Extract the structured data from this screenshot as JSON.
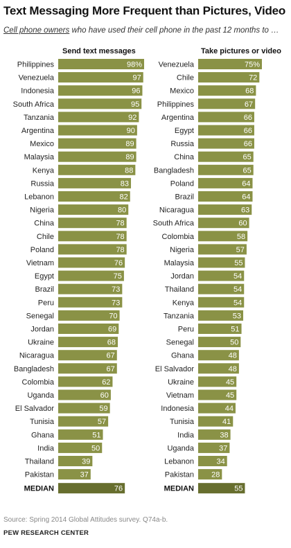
{
  "title": "Text Messaging More Frequent than Pictures, Video",
  "subtitle_underlined": "Cell phone owners",
  "subtitle_rest": " who have used their cell phone in the past 12 months to …",
  "source": "Source: Spring 2014 Global Attitudes survey. Q74a-b.",
  "org": "PEW RESEARCH CENTER",
  "colors": {
    "bar": "#8a9246",
    "median_bar": "#676e2e"
  },
  "chart_data": [
    {
      "type": "bar",
      "orientation": "horizontal",
      "title": "Send text messages",
      "categories": [
        "Philippines",
        "Venezuela",
        "Indonesia",
        "South Africa",
        "Tanzania",
        "Argentina",
        "Mexico",
        "Malaysia",
        "Kenya",
        "Russia",
        "Lebanon",
        "Nigeria",
        "China",
        "Chile",
        "Poland",
        "Vietnam",
        "Egypt",
        "Brazil",
        "Peru",
        "Senegal",
        "Jordan",
        "Ukraine",
        "Nicaragua",
        "Bangladesh",
        "Colombia",
        "Uganda",
        "El Salvador",
        "Tunisia",
        "Ghana",
        "India",
        "Thailand",
        "Pakistan"
      ],
      "values": [
        98,
        97,
        96,
        95,
        92,
        90,
        89,
        89,
        88,
        83,
        82,
        80,
        78,
        78,
        78,
        76,
        75,
        73,
        73,
        70,
        69,
        68,
        67,
        67,
        62,
        60,
        59,
        57,
        51,
        50,
        39,
        37
      ],
      "value_labels": [
        "98%",
        "97",
        "96",
        "95",
        "92",
        "90",
        "89",
        "89",
        "88",
        "83",
        "82",
        "80",
        "78",
        "78",
        "78",
        "76",
        "75",
        "73",
        "73",
        "70",
        "69",
        "68",
        "67",
        "67",
        "62",
        "60",
        "59",
        "57",
        "51",
        "50",
        "39",
        "37"
      ],
      "median_label": "MEDIAN",
      "median": 76,
      "xlim": [
        0,
        100
      ]
    },
    {
      "type": "bar",
      "orientation": "horizontal",
      "title": "Take pictures or video",
      "categories": [
        "Venezuela",
        "Chile",
        "Mexico",
        "Philippines",
        "Argentina",
        "Egypt",
        "Russia",
        "China",
        "Bangladesh",
        "Poland",
        "Brazil",
        "Nicaragua",
        "South Africa",
        "Colombia",
        "Nigeria",
        "Malaysia",
        "Jordan",
        "Thailand",
        "Kenya",
        "Tanzania",
        "Peru",
        "Senegal",
        "Ghana",
        "El Salvador",
        "Ukraine",
        "Vietnam",
        "Indonesia",
        "Tunisia",
        "India",
        "Uganda",
        "Lebanon",
        "Pakistan"
      ],
      "values": [
        75,
        72,
        68,
        67,
        66,
        66,
        66,
        65,
        65,
        64,
        64,
        63,
        60,
        58,
        57,
        55,
        54,
        54,
        54,
        53,
        51,
        50,
        48,
        48,
        45,
        45,
        44,
        41,
        38,
        37,
        34,
        28
      ],
      "value_labels": [
        "75%",
        "72",
        "68",
        "67",
        "66",
        "66",
        "66",
        "65",
        "65",
        "64",
        "64",
        "63",
        "60",
        "58",
        "57",
        "55",
        "54",
        "54",
        "54",
        "53",
        "51",
        "50",
        "48",
        "48",
        "45",
        "45",
        "44",
        "41",
        "38",
        "37",
        "34",
        "28"
      ],
      "median_label": "MEDIAN",
      "median": 55,
      "xlim": [
        0,
        100
      ]
    }
  ]
}
